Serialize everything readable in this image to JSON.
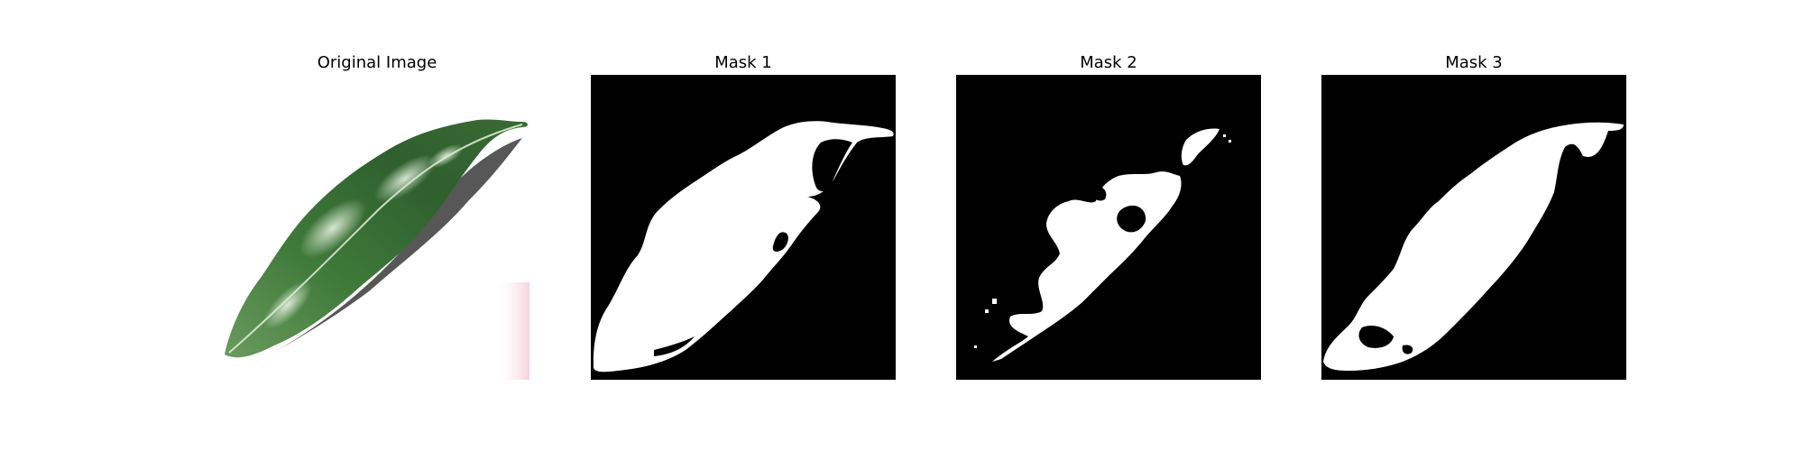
{
  "figure": {
    "panels": [
      {
        "title": "Original Image",
        "content": "photo of a green leaf on white background"
      },
      {
        "title": "Mask 1",
        "content": "binary segmentation mask"
      },
      {
        "title": "Mask 2",
        "content": "binary segmentation mask"
      },
      {
        "title": "Mask 3",
        "content": "binary segmentation mask"
      }
    ]
  },
  "colors": {
    "background": "#ffffff",
    "mask_background": "#000000",
    "mask_foreground": "#ffffff",
    "leaf_dark": "#2f5a2c",
    "leaf_mid": "#4f8a45",
    "leaf_light": "#9cc48f"
  }
}
